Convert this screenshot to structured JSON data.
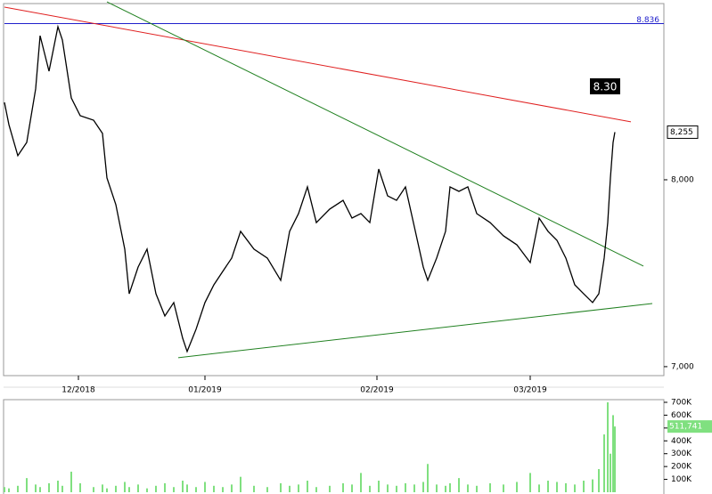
{
  "chart_data": [
    {
      "type": "line",
      "xlim": [
        5,
        745
      ],
      "xticks": [
        {
          "value": 88,
          "label": "12/2018"
        },
        {
          "value": 230,
          "label": "01/2019"
        },
        {
          "value": 423,
          "label": "02/2019"
        },
        {
          "value": 595,
          "label": "03/2019"
        }
      ],
      "ylim": [
        6952,
        8943
      ],
      "yticks": [
        {
          "value": 7000,
          "label": "7,000"
        },
        {
          "value": 8000,
          "label": "8,000"
        }
      ],
      "series": [
        {
          "color": "#000000",
          "x": [
            5,
            10,
            20,
            30,
            40,
            45,
            55,
            65,
            70,
            80,
            90,
            105,
            115,
            120,
            130,
            140,
            145,
            155,
            165,
            175,
            185,
            195,
            205,
            210,
            220,
            230,
            240,
            250,
            260,
            270,
            285,
            300,
            315,
            325,
            335,
            345,
            355,
            370,
            385,
            395,
            405,
            415,
            425,
            435,
            445,
            455,
            465,
            475,
            480,
            490,
            500,
            505,
            515,
            525,
            535,
            550,
            565,
            580,
            595,
            605,
            615,
            625,
            635,
            645,
            655,
            665,
            672,
            678,
            682,
            685,
            688,
            690
          ],
          "values": [
            8414,
            8295,
            8129,
            8200,
            8486,
            8771,
            8581,
            8819,
            8748,
            8438,
            8343,
            8319,
            8248,
            8010,
            7867,
            7629,
            7390,
            7533,
            7629,
            7390,
            7271,
            7343,
            7152,
            7081,
            7200,
            7343,
            7438,
            7510,
            7581,
            7724,
            7629,
            7581,
            7462,
            7724,
            7819,
            7962,
            7771,
            7843,
            7890,
            7795,
            7819,
            7771,
            8057,
            7914,
            7890,
            7962,
            7748,
            7533,
            7462,
            7581,
            7724,
            7962,
            7938,
            7962,
            7819,
            7771,
            7700,
            7652,
            7557,
            7795,
            7724,
            7676,
            7581,
            7438,
            7390,
            7343,
            7390,
            7581,
            7771,
            8010,
            8200,
            8255
          ],
          "last_label": "8,255"
        }
      ],
      "trend_lines": [
        {
          "color": "#e02020",
          "x": [
            5,
            708
          ],
          "values": [
            8924,
            8310
          ]
        },
        {
          "color": "#208020",
          "x": [
            120,
            722
          ],
          "values": [
            8952,
            7538
          ]
        },
        {
          "color": "#208020",
          "x": [
            200,
            732
          ],
          "values": [
            7048,
            7338
          ]
        }
      ],
      "hline": {
        "value": 8836,
        "label": "8.836",
        "color": "#2020cc"
      },
      "annotation": "8.30"
    },
    {
      "type": "bar",
      "xlim": [
        5,
        745
      ],
      "ylim": [
        0,
        700000
      ],
      "yticks": [
        {
          "value": 100000,
          "label": "100K"
        },
        {
          "value": 200000,
          "label": "200K"
        },
        {
          "value": 300000,
          "label": "300K"
        },
        {
          "value": 400000,
          "label": "400K"
        },
        {
          "value": 500000,
          "label": "500K"
        },
        {
          "value": 600000,
          "label": "600K"
        },
        {
          "value": 700000,
          "label": "700K"
        }
      ],
      "series": [
        {
          "color": "#80e080",
          "x": [
            5,
            10,
            20,
            30,
            40,
            45,
            55,
            65,
            70,
            80,
            90,
            105,
            115,
            120,
            130,
            140,
            145,
            155,
            165,
            175,
            185,
            195,
            205,
            210,
            220,
            230,
            240,
            250,
            260,
            270,
            285,
            300,
            315,
            325,
            335,
            345,
            355,
            370,
            385,
            395,
            405,
            415,
            425,
            435,
            445,
            455,
            465,
            475,
            480,
            490,
            500,
            505,
            515,
            525,
            535,
            550,
            565,
            580,
            595,
            605,
            615,
            625,
            635,
            645,
            655,
            665,
            672,
            678,
            682,
            685,
            688,
            690
          ],
          "values": [
            40000,
            30000,
            50000,
            110000,
            60000,
            40000,
            70000,
            90000,
            50000,
            160000,
            70000,
            40000,
            60000,
            30000,
            50000,
            80000,
            40000,
            60000,
            30000,
            50000,
            70000,
            40000,
            90000,
            60000,
            40000,
            80000,
            50000,
            40000,
            60000,
            120000,
            50000,
            40000,
            70000,
            50000,
            60000,
            90000,
            40000,
            50000,
            70000,
            60000,
            150000,
            50000,
            90000,
            60000,
            50000,
            70000,
            60000,
            80000,
            220000,
            60000,
            50000,
            70000,
            110000,
            60000,
            50000,
            70000,
            60000,
            80000,
            150000,
            60000,
            90000,
            80000,
            70000,
            60000,
            90000,
            100000,
            180000,
            450000,
            700000,
            300000,
            600000,
            511741
          ],
          "last_label": "511,741"
        }
      ]
    }
  ]
}
